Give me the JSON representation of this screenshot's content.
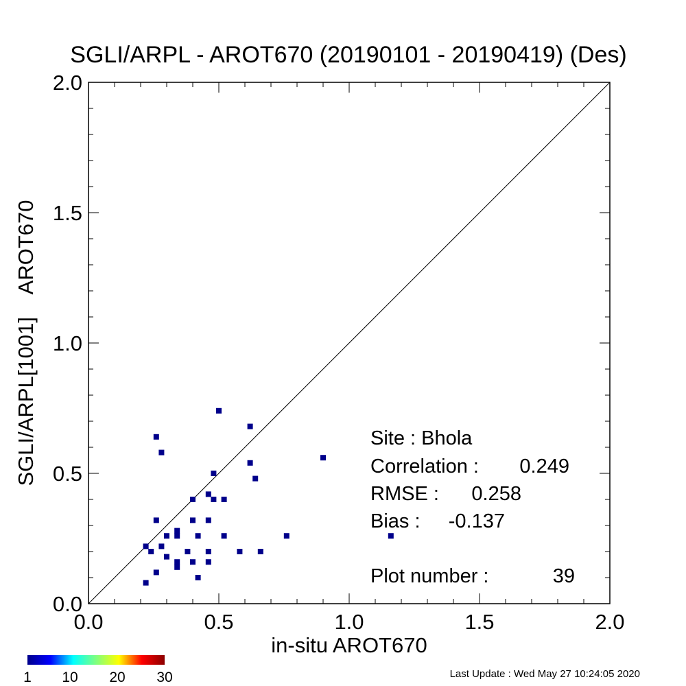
{
  "chart_data": {
    "type": "scatter",
    "title": "SGLI/ARPL - AROT670 (20190101 - 20190419) (Des)",
    "xlabel": "in-situ AROT670",
    "ylabel": "SGLI/ARPL[1001]    AROT670",
    "xlim": [
      0.0,
      2.0
    ],
    "ylim": [
      0.0,
      2.0
    ],
    "xticks": [
      "0.0",
      "0.5",
      "1.0",
      "1.5",
      "2.0"
    ],
    "yticks": [
      "0.0",
      "0.5",
      "1.0",
      "1.5",
      "2.0"
    ],
    "one_to_one_line": true,
    "grid": false,
    "marker_color": "#00008b",
    "points": [
      {
        "x": 0.5,
        "y": 0.74
      },
      {
        "x": 0.62,
        "y": 0.68
      },
      {
        "x": 0.26,
        "y": 0.64
      },
      {
        "x": 0.28,
        "y": 0.58
      },
      {
        "x": 0.9,
        "y": 0.56
      },
      {
        "x": 0.62,
        "y": 0.54
      },
      {
        "x": 0.48,
        "y": 0.5
      },
      {
        "x": 0.64,
        "y": 0.48
      },
      {
        "x": 0.46,
        "y": 0.42
      },
      {
        "x": 0.4,
        "y": 0.4
      },
      {
        "x": 0.48,
        "y": 0.4
      },
      {
        "x": 0.52,
        "y": 0.4
      },
      {
        "x": 0.26,
        "y": 0.32
      },
      {
        "x": 0.4,
        "y": 0.32
      },
      {
        "x": 0.46,
        "y": 0.32
      },
      {
        "x": 0.34,
        "y": 0.28
      },
      {
        "x": 0.3,
        "y": 0.26
      },
      {
        "x": 0.34,
        "y": 0.26
      },
      {
        "x": 0.42,
        "y": 0.26
      },
      {
        "x": 0.52,
        "y": 0.26
      },
      {
        "x": 0.76,
        "y": 0.26
      },
      {
        "x": 1.16,
        "y": 0.26
      },
      {
        "x": 0.22,
        "y": 0.22
      },
      {
        "x": 0.28,
        "y": 0.22
      },
      {
        "x": 0.24,
        "y": 0.2
      },
      {
        "x": 0.38,
        "y": 0.2
      },
      {
        "x": 0.46,
        "y": 0.2
      },
      {
        "x": 0.58,
        "y": 0.2
      },
      {
        "x": 0.66,
        "y": 0.2
      },
      {
        "x": 0.3,
        "y": 0.18
      },
      {
        "x": 0.34,
        "y": 0.16
      },
      {
        "x": 0.4,
        "y": 0.16
      },
      {
        "x": 0.46,
        "y": 0.16
      },
      {
        "x": 0.34,
        "y": 0.14
      },
      {
        "x": 0.26,
        "y": 0.12
      },
      {
        "x": 0.42,
        "y": 0.1
      },
      {
        "x": 0.22,
        "y": 0.08
      }
    ],
    "stats": [
      {
        "label": "Site : Bhola",
        "value": ""
      },
      {
        "label": "Correlation :",
        "value": "0.249"
      },
      {
        "label": "RMSE :",
        "value": "0.258"
      },
      {
        "label": "Bias :",
        "value": "-0.137"
      },
      {
        "label": "Plot number :",
        "value": "39"
      }
    ],
    "colorbar": {
      "ticks": [
        "1",
        "10",
        "20",
        "30"
      ],
      "tick_values": [
        1,
        10,
        20,
        30
      ],
      "range": [
        1,
        30
      ],
      "colors": [
        "#00008b",
        "#0000ff",
        "#00ffff",
        "#7fff7f",
        "#ffff00",
        "#ff0000",
        "#8b0000"
      ]
    }
  },
  "footer": {
    "last_update": "Last Update : Wed May 27 10:24:05 2020"
  }
}
